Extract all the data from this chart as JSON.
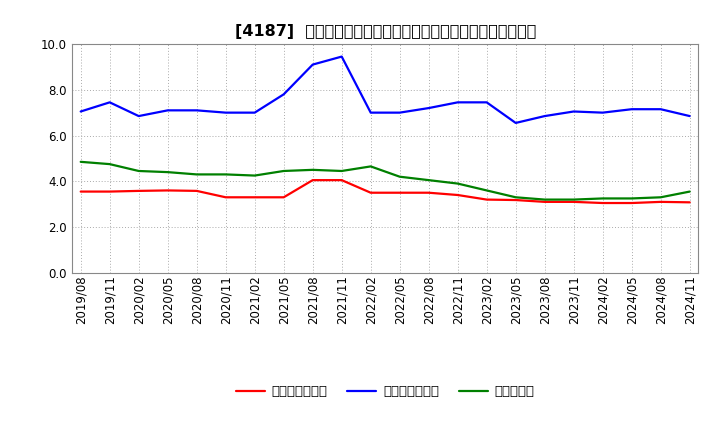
{
  "title": "[4187]  売上債権回転率、買入債務回転率、在庫回転率の推移",
  "ylim": [
    0.0,
    10.0
  ],
  "yticks": [
    0.0,
    2.0,
    4.0,
    6.0,
    8.0,
    10.0
  ],
  "background_color": "#ffffff",
  "grid_color": "#aaaaaa",
  "legend_labels": [
    "売上債権回転率",
    "買入債務回転率",
    "在庫回転率"
  ],
  "line_colors": [
    "#ff0000",
    "#0000ff",
    "#008000"
  ],
  "dates": [
    "2019/08",
    "2019/11",
    "2020/02",
    "2020/05",
    "2020/08",
    "2020/11",
    "2021/02",
    "2021/05",
    "2021/08",
    "2021/11",
    "2022/02",
    "2022/05",
    "2022/08",
    "2022/11",
    "2023/02",
    "2023/05",
    "2023/08",
    "2023/11",
    "2024/02",
    "2024/05",
    "2024/08",
    "2024/11"
  ],
  "series_receivables": [
    3.55,
    3.55,
    3.58,
    3.6,
    3.58,
    3.3,
    3.3,
    3.3,
    4.05,
    4.05,
    3.5,
    3.5,
    3.5,
    3.4,
    3.2,
    3.18,
    3.1,
    3.1,
    3.05,
    3.05,
    3.1,
    3.08
  ],
  "series_payables": [
    7.05,
    7.45,
    6.85,
    7.1,
    7.1,
    7.0,
    7.0,
    7.8,
    9.1,
    9.45,
    7.0,
    7.0,
    7.2,
    7.45,
    7.45,
    6.55,
    6.85,
    7.05,
    7.0,
    7.15,
    7.15,
    6.85
  ],
  "series_inventory": [
    4.85,
    4.75,
    4.45,
    4.4,
    4.3,
    4.3,
    4.25,
    4.45,
    4.5,
    4.45,
    4.65,
    4.2,
    4.05,
    3.9,
    3.6,
    3.3,
    3.2,
    3.2,
    3.25,
    3.25,
    3.3,
    3.55
  ],
  "title_fontsize": 11.5,
  "tick_fontsize": 8.5,
  "legend_fontsize": 9.5,
  "linewidth": 1.6
}
